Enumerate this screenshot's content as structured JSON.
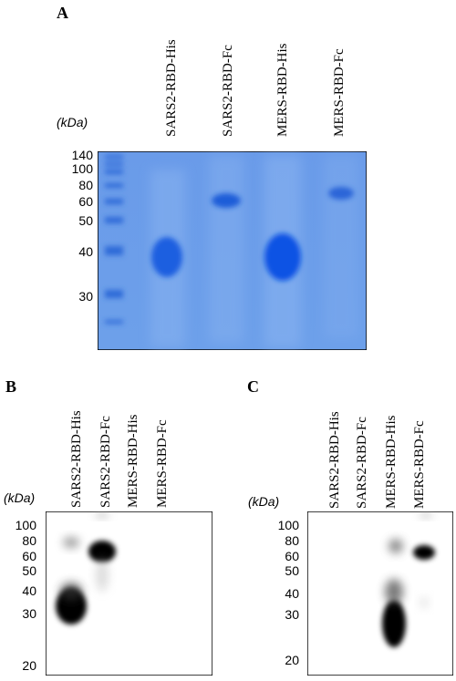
{
  "panel_a": {
    "letter": "A",
    "unit_label": "(kDa)",
    "lanes": [
      "SARS2-RBD-His",
      "SARS2-RBD-Fc",
      "MERS-RBD-His",
      "MERS-RBD-Fc"
    ],
    "ladder_ticks": [
      "140",
      "100",
      "80",
      "60",
      "50",
      "40",
      "30"
    ],
    "gel_color": "#5f93e6"
  },
  "panel_b": {
    "letter": "B",
    "unit_label": "(kDa)",
    "lanes": [
      "SARS2-RBD-His",
      "SARS2-RBD-Fc",
      "MERS-RBD-His",
      "MERS-RBD-Fc"
    ],
    "ladder_ticks": [
      "100",
      "80",
      "60",
      "50",
      "40",
      "30",
      "20"
    ]
  },
  "panel_c": {
    "letter": "C",
    "unit_label": "(kDa)",
    "lanes": [
      "SARS2-RBD-His",
      "SARS2-RBD-Fc",
      "MERS-RBD-His",
      "MERS-RBD-Fc"
    ],
    "ladder_ticks": [
      "100",
      "80",
      "60",
      "50",
      "40",
      "30",
      "20"
    ]
  }
}
